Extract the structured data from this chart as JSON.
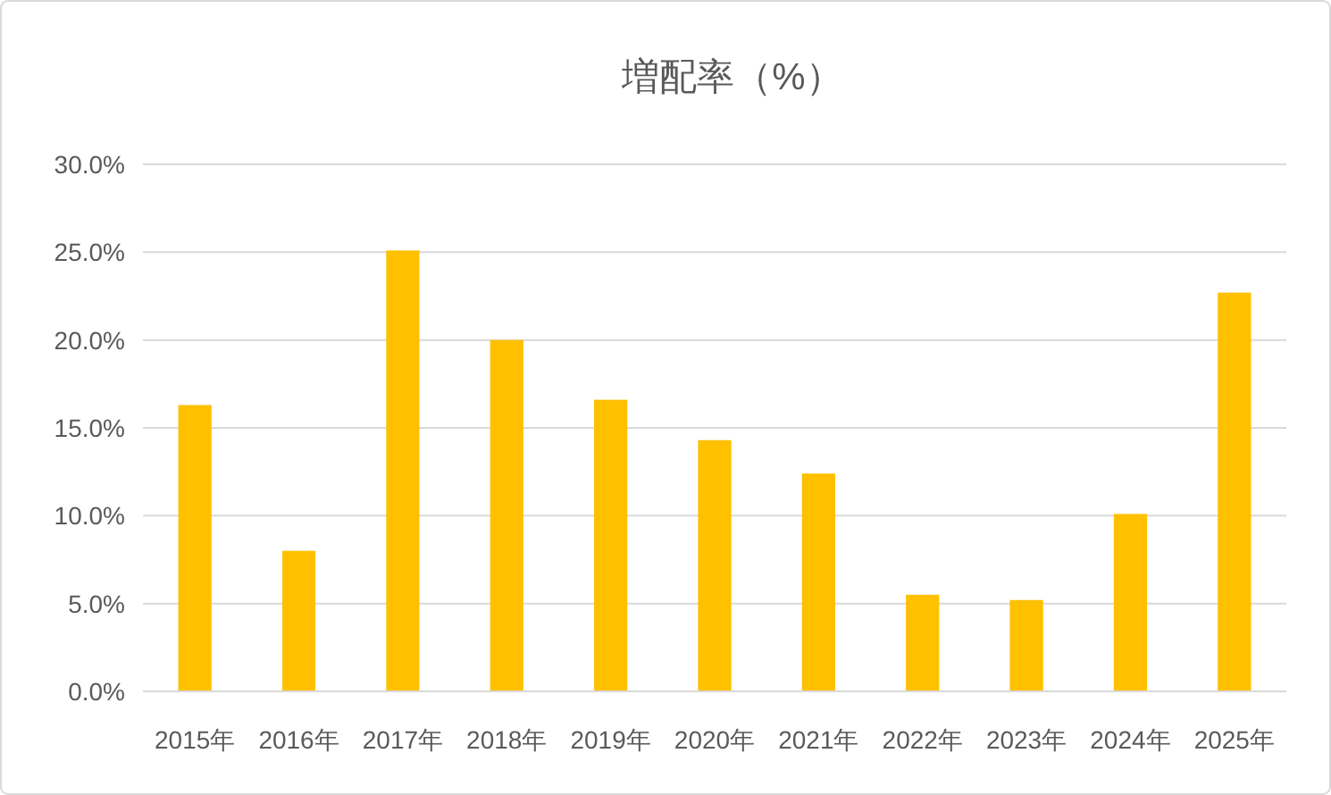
{
  "chart_data": {
    "type": "bar",
    "title": "増配率（%）",
    "categories": [
      "2015年",
      "2016年",
      "2017年",
      "2018年",
      "2019年",
      "2020年",
      "2021年",
      "2022年",
      "2023年",
      "2024年",
      "2025年"
    ],
    "values": [
      16.3,
      8.0,
      25.1,
      20.0,
      16.6,
      14.3,
      12.4,
      5.5,
      5.2,
      10.1,
      22.7
    ],
    "color": "#ffc000",
    "ylim": [
      0,
      30
    ],
    "yticks": [
      {
        "value": 0,
        "label": "0.0%"
      },
      {
        "value": 5,
        "label": "5.0%"
      },
      {
        "value": 10,
        "label": "10.0%"
      },
      {
        "value": 15,
        "label": "15.0%"
      },
      {
        "value": 20,
        "label": "20.0%"
      },
      {
        "value": 25,
        "label": "25.0%"
      },
      {
        "value": 30,
        "label": "30.0%"
      }
    ],
    "grid": "y"
  }
}
